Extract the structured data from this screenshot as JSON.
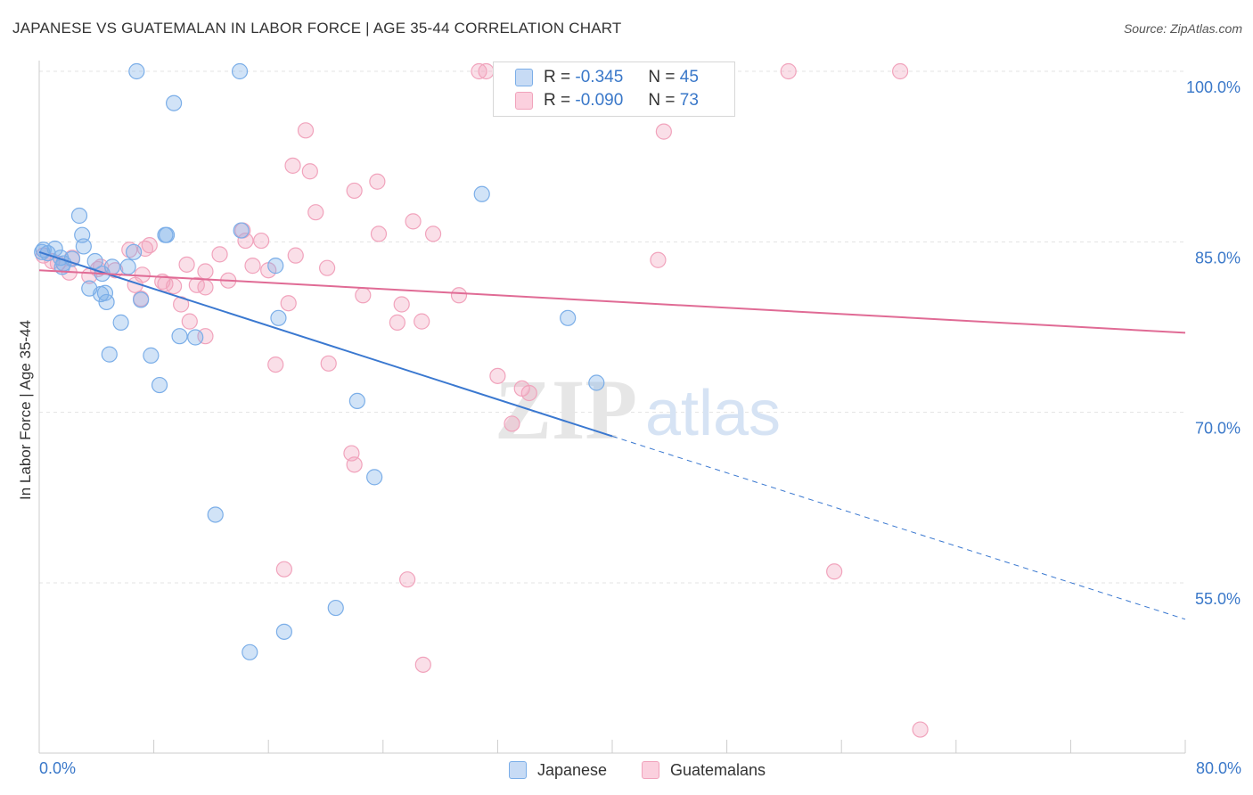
{
  "title": "JAPANESE VS GUATEMALAN IN LABOR FORCE | AGE 35-44 CORRELATION CHART",
  "source": "Source: ZipAtlas.com",
  "legend": {
    "r_label": "R =",
    "n_label": "N =",
    "series": [
      {
        "name": "Japanese",
        "r": "-0.345",
        "n": "45"
      },
      {
        "name": "Guatemalans",
        "r": "-0.090",
        "n": "73"
      }
    ]
  },
  "watermark": {
    "zip": "ZIP",
    "atlas": "atlas"
  },
  "chart_data": {
    "type": "scatter",
    "ylabel": "In Labor Force | Age 35-44",
    "xlim": [
      0,
      80
    ],
    "ylim": [
      40,
      102.5
    ],
    "x_tick_labels": [
      "0.0%",
      "80.0%"
    ],
    "y_ticks": [
      55,
      70,
      85,
      100
    ],
    "y_tick_labels": [
      "55.0%",
      "70.0%",
      "85.0%",
      "100.0%"
    ],
    "grid": true,
    "legend_position": "top-center",
    "colors": {
      "japanese": "#7baee8",
      "japanese_line": "#3a78d0",
      "guatemalans": "#f1a3bc",
      "guatemalans_line": "#e06b95"
    },
    "series": [
      {
        "name": "Japanese",
        "trend": {
          "x": [
            0,
            40
          ],
          "y": [
            84.1,
            67.9
          ],
          "dashed_to": [
            80,
            51.8
          ]
        },
        "points": [
          [
            6.8,
            100
          ],
          [
            14.0,
            100
          ],
          [
            9.4,
            97.2
          ],
          [
            30.9,
            89.2
          ],
          [
            2.8,
            87.3
          ],
          [
            3.0,
            85.6
          ],
          [
            8.9,
            85.6
          ],
          [
            8.8,
            85.6
          ],
          [
            14.1,
            86.0
          ],
          [
            3.1,
            84.6
          ],
          [
            0.3,
            84.3
          ],
          [
            1.1,
            84.4
          ],
          [
            0.2,
            84.1
          ],
          [
            0.6,
            84.0
          ],
          [
            1.5,
            83.6
          ],
          [
            2.3,
            83.5
          ],
          [
            3.9,
            83.3
          ],
          [
            6.6,
            84.1
          ],
          [
            1.7,
            83.1
          ],
          [
            1.6,
            82.8
          ],
          [
            5.1,
            82.8
          ],
          [
            6.2,
            82.8
          ],
          [
            4.4,
            82.2
          ],
          [
            16.5,
            82.9
          ],
          [
            3.5,
            80.9
          ],
          [
            4.3,
            80.4
          ],
          [
            4.6,
            80.5
          ],
          [
            7.1,
            79.9
          ],
          [
            4.7,
            79.7
          ],
          [
            36.9,
            78.3
          ],
          [
            16.7,
            78.3
          ],
          [
            5.7,
            77.9
          ],
          [
            9.8,
            76.7
          ],
          [
            10.9,
            76.6
          ],
          [
            4.9,
            75.1
          ],
          [
            7.8,
            75.0
          ],
          [
            8.4,
            72.4
          ],
          [
            38.9,
            72.6
          ],
          [
            22.2,
            71.0
          ],
          [
            23.4,
            64.3
          ],
          [
            12.3,
            61.0
          ],
          [
            20.7,
            52.8
          ],
          [
            17.1,
            50.7
          ],
          [
            14.7,
            48.9
          ]
        ]
      },
      {
        "name": "Guatemalans",
        "trend": {
          "x": [
            0,
            80
          ],
          "y": [
            82.5,
            77.0
          ]
        },
        "points": [
          [
            30.7,
            100
          ],
          [
            31.2,
            100
          ],
          [
            38.3,
            100
          ],
          [
            52.3,
            100
          ],
          [
            60.1,
            100
          ],
          [
            18.6,
            94.8
          ],
          [
            43.6,
            94.7
          ],
          [
            17.7,
            91.7
          ],
          [
            18.9,
            91.2
          ],
          [
            22.0,
            89.5
          ],
          [
            23.6,
            90.3
          ],
          [
            19.3,
            87.6
          ],
          [
            26.1,
            86.8
          ],
          [
            23.7,
            85.7
          ],
          [
            27.5,
            85.7
          ],
          [
            14.2,
            86.0
          ],
          [
            14.4,
            85.1
          ],
          [
            15.5,
            85.1
          ],
          [
            7.7,
            84.7
          ],
          [
            6.3,
            84.3
          ],
          [
            7.4,
            84.4
          ],
          [
            12.6,
            83.9
          ],
          [
            17.9,
            83.8
          ],
          [
            0.3,
            83.8
          ],
          [
            0.9,
            83.3
          ],
          [
            2.3,
            83.6
          ],
          [
            1.3,
            83.1
          ],
          [
            43.2,
            83.4
          ],
          [
            10.3,
            83.0
          ],
          [
            14.9,
            82.9
          ],
          [
            20.1,
            82.7
          ],
          [
            4.3,
            82.8
          ],
          [
            4.1,
            82.6
          ],
          [
            5.3,
            82.5
          ],
          [
            2.1,
            82.3
          ],
          [
            3.5,
            82.0
          ],
          [
            11.6,
            82.4
          ],
          [
            16.0,
            82.5
          ],
          [
            7.2,
            82.1
          ],
          [
            8.6,
            81.5
          ],
          [
            13.2,
            81.6
          ],
          [
            8.8,
            81.3
          ],
          [
            6.7,
            81.2
          ],
          [
            9.4,
            81.1
          ],
          [
            11.0,
            81.2
          ],
          [
            11.6,
            81.0
          ],
          [
            22.6,
            80.3
          ],
          [
            29.3,
            80.3
          ],
          [
            7.1,
            80.0
          ],
          [
            17.4,
            79.6
          ],
          [
            25.3,
            79.5
          ],
          [
            9.9,
            79.5
          ],
          [
            10.5,
            78.0
          ],
          [
            25.0,
            77.9
          ],
          [
            26.7,
            78.0
          ],
          [
            11.6,
            76.7
          ],
          [
            16.5,
            74.2
          ],
          [
            20.2,
            74.3
          ],
          [
            32.0,
            73.2
          ],
          [
            33.7,
            72.1
          ],
          [
            34.2,
            71.7
          ],
          [
            33.0,
            69.0
          ],
          [
            21.8,
            66.4
          ],
          [
            22.0,
            65.4
          ],
          [
            17.1,
            56.2
          ],
          [
            25.7,
            55.3
          ],
          [
            55.5,
            56.0
          ],
          [
            26.8,
            47.8
          ],
          [
            61.5,
            42.1
          ]
        ]
      }
    ]
  }
}
